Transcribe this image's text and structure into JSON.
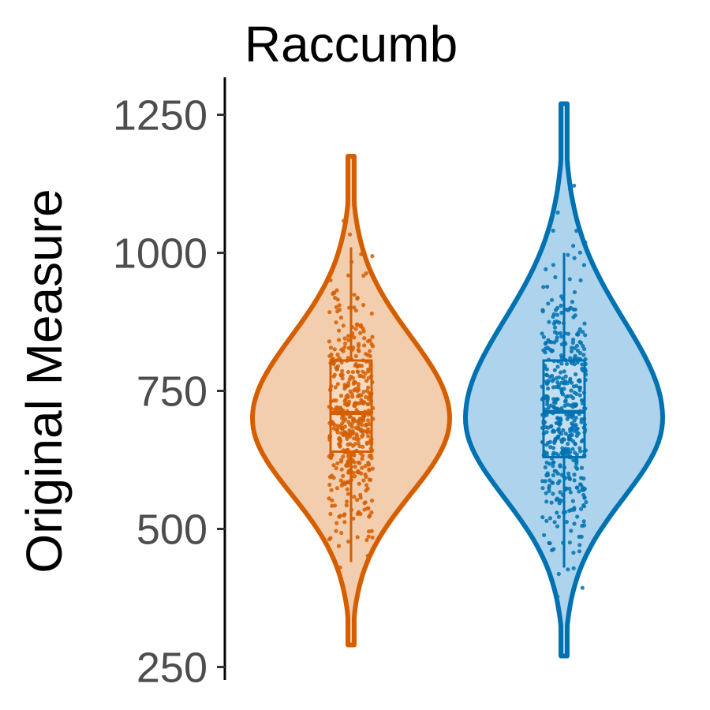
{
  "chart_data": {
    "type": "violin",
    "title": "Raccumb",
    "xlabel": "",
    "ylabel": "Original Measure",
    "ylim": [
      240,
      1320
    ],
    "yticks": [
      250,
      500,
      750,
      1000,
      1250
    ],
    "grid": false,
    "legend": "none",
    "groups": [
      {
        "color": "#D55E00",
        "fill": "#F2CDAE",
        "box_fill": "#F8DCC5",
        "min": 290,
        "max": 1175,
        "mode": 700,
        "q1": 640,
        "median": 710,
        "q3": 805,
        "whisker_low": 440,
        "whisker_high": 1010,
        "n_points": 480
      },
      {
        "color": "#0072B2",
        "fill": "#AED3EC",
        "box_fill": "#C9E1F2",
        "min": 270,
        "max": 1270,
        "mode": 700,
        "q1": 630,
        "median": 712,
        "q3": 805,
        "whisker_low": 430,
        "whisker_high": 1000,
        "n_points": 480
      }
    ]
  }
}
